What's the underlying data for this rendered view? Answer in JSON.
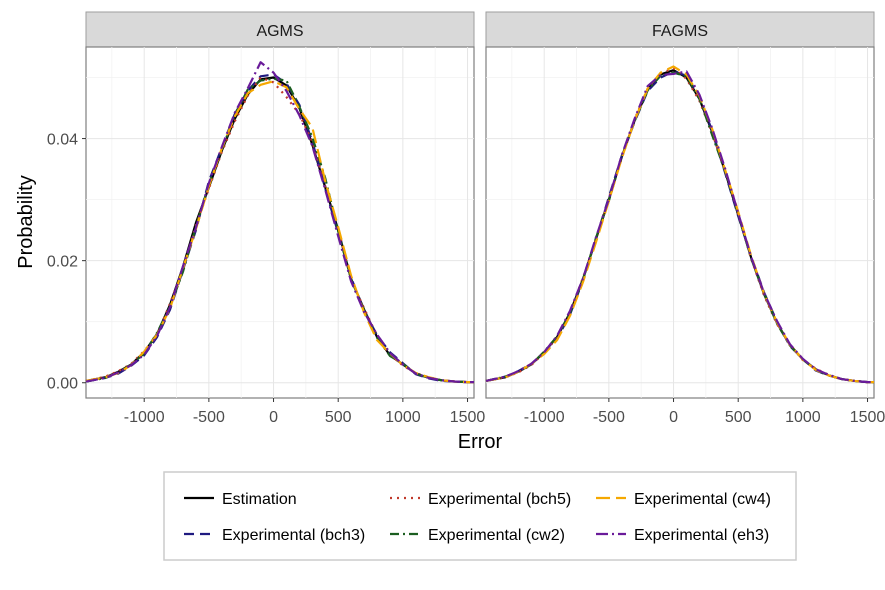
{
  "chart_data": {
    "type": "line",
    "facet_labels": [
      "AGMS",
      "FAGMS"
    ],
    "xlabel": "Error",
    "ylabel": "Probability",
    "xlim": [
      -1450,
      1550
    ],
    "ylim": [
      -0.0025,
      0.055
    ],
    "x_ticks": [
      -1000,
      -500,
      0,
      500,
      1000,
      1500
    ],
    "x_tick_labels": [
      "-1000",
      "-500",
      "0",
      "500",
      "1000",
      "1500"
    ],
    "y_ticks": [
      0,
      0.02,
      0.04
    ],
    "y_tick_labels": [
      "0.00",
      "0.02",
      "0.04"
    ],
    "grid": true,
    "legend_position": "bottom",
    "x": [
      -1450,
      -1300,
      -1200,
      -1100,
      -1000,
      -900,
      -800,
      -700,
      -600,
      -500,
      -400,
      -300,
      -200,
      -100,
      0,
      100,
      200,
      300,
      400,
      500,
      600,
      700,
      800,
      900,
      1000,
      1100,
      1200,
      1300,
      1400,
      1500,
      1550
    ],
    "series": [
      {
        "name": "Estimation",
        "color": "#000000",
        "dash": "",
        "stroke": 2.2,
        "AGMS": [
          0.0003,
          0.0009,
          0.0018,
          0.003,
          0.005,
          0.008,
          0.0128,
          0.019,
          0.0262,
          0.032,
          0.038,
          0.0432,
          0.0472,
          0.0497,
          0.05,
          0.0487,
          0.045,
          0.039,
          0.032,
          0.025,
          0.017,
          0.012,
          0.0075,
          0.0045,
          0.003,
          0.0015,
          0.0008,
          0.0004,
          0.0002,
          0.0001,
          0.0001
        ],
        "FAGMS": [
          0.0003,
          0.0009,
          0.0018,
          0.003,
          0.005,
          0.0075,
          0.0115,
          0.017,
          0.0235,
          0.03,
          0.037,
          0.043,
          0.048,
          0.0505,
          0.0512,
          0.05,
          0.0465,
          0.041,
          0.0345,
          0.0275,
          0.0205,
          0.0145,
          0.0098,
          0.0062,
          0.0038,
          0.0022,
          0.0012,
          0.0006,
          0.0003,
          0.0001,
          0.0001
        ]
      },
      {
        "name": "Experimental (bch3)",
        "color": "#1f1a80",
        "dash": "10,6",
        "stroke": 2.2,
        "AGMS": [
          0.0002,
          0.0008,
          0.0015,
          0.0028,
          0.0045,
          0.0075,
          0.012,
          0.0185,
          0.025,
          0.033,
          0.0385,
          0.044,
          0.0478,
          0.0502,
          0.0505,
          0.049,
          0.0455,
          0.0395,
          0.0318,
          0.0245,
          0.0172,
          0.0118,
          0.0078,
          0.005,
          0.0032,
          0.0014,
          0.0007,
          0.0003,
          0.0002,
          0.0001,
          0.0001
        ],
        "FAGMS": [
          0.0003,
          0.001,
          0.0019,
          0.0031,
          0.0048,
          0.0072,
          0.0112,
          0.0168,
          0.0236,
          0.0304,
          0.0372,
          0.0428,
          0.0478,
          0.05,
          0.051,
          0.0503,
          0.0468,
          0.0412,
          0.0343,
          0.0273,
          0.0207,
          0.0148,
          0.01,
          0.006,
          0.0039,
          0.002,
          0.0012,
          0.0006,
          0.0003,
          0.0001,
          0.0001
        ]
      },
      {
        "name": "Experimental (bch5)",
        "color": "#c0392b",
        "dash": "2,5",
        "stroke": 2.2,
        "AGMS": [
          0.0003,
          0.001,
          0.0019,
          0.0031,
          0.0052,
          0.0078,
          0.013,
          0.0186,
          0.0258,
          0.0318,
          0.0378,
          0.0428,
          0.047,
          0.05,
          0.0492,
          0.0468,
          0.044,
          0.0395,
          0.0322,
          0.0252,
          0.0168,
          0.0122,
          0.0077,
          0.0047,
          0.0028,
          0.0016,
          0.0009,
          0.0004,
          0.0002,
          0.0001,
          0.0001
        ],
        "FAGMS": [
          0.0003,
          0.0009,
          0.0017,
          0.0029,
          0.0049,
          0.0074,
          0.0116,
          0.0172,
          0.0234,
          0.0302,
          0.0368,
          0.0432,
          0.0482,
          0.0507,
          0.0515,
          0.0498,
          0.0462,
          0.0408,
          0.0347,
          0.0277,
          0.0203,
          0.0143,
          0.0096,
          0.0063,
          0.0037,
          0.0023,
          0.0013,
          0.0006,
          0.0003,
          0.0001,
          0.0001
        ]
      },
      {
        "name": "Experimental (cw2)",
        "color": "#1b5e20",
        "dash": "9,4,2,4",
        "stroke": 2.2,
        "AGMS": [
          0.0002,
          0.0008,
          0.0017,
          0.003,
          0.0048,
          0.0082,
          0.0125,
          0.0182,
          0.0255,
          0.0325,
          0.0382,
          0.0438,
          0.048,
          0.0495,
          0.0498,
          0.0495,
          0.0452,
          0.0402,
          0.0335,
          0.0248,
          0.017,
          0.0118,
          0.0074,
          0.0044,
          0.0031,
          0.0015,
          0.0008,
          0.0004,
          0.0002,
          0.0001,
          0.0001
        ],
        "FAGMS": [
          0.0003,
          0.001,
          0.0018,
          0.003,
          0.0051,
          0.0076,
          0.0114,
          0.0169,
          0.0237,
          0.0298,
          0.0371,
          0.0429,
          0.0479,
          0.0503,
          0.0508,
          0.0502,
          0.0466,
          0.0405,
          0.0346,
          0.0276,
          0.0204,
          0.0146,
          0.0097,
          0.0061,
          0.0038,
          0.0021,
          0.0012,
          0.0006,
          0.0003,
          0.0001,
          0.0001
        ]
      },
      {
        "name": "Experimental (cw4)",
        "color": "#f5a800",
        "dash": "14,6",
        "stroke": 2.2,
        "AGMS": [
          0.0003,
          0.0009,
          0.0016,
          0.0029,
          0.0051,
          0.0079,
          0.0122,
          0.0188,
          0.0252,
          0.0322,
          0.0384,
          0.0436,
          0.0474,
          0.0488,
          0.0494,
          0.0484,
          0.0448,
          0.0418,
          0.033,
          0.0255,
          0.0175,
          0.0115,
          0.007,
          0.0048,
          0.0029,
          0.0016,
          0.0009,
          0.0004,
          0.0002,
          0.0001,
          0.0001
        ],
        "FAGMS": [
          0.0003,
          0.0009,
          0.0018,
          0.0031,
          0.0047,
          0.007,
          0.011,
          0.0165,
          0.023,
          0.0298,
          0.0368,
          0.043,
          0.0482,
          0.0508,
          0.0518,
          0.0505,
          0.047,
          0.0415,
          0.0348,
          0.028,
          0.0208,
          0.0146,
          0.0099,
          0.0062,
          0.0038,
          0.0021,
          0.0012,
          0.0006,
          0.0003,
          0.0001,
          0.0001
        ]
      },
      {
        "name": "Experimental (eh3)",
        "color": "#6a1b9a",
        "dash": "12,4,2,4",
        "stroke": 2.2,
        "AGMS": [
          0.0002,
          0.0008,
          0.0017,
          0.0029,
          0.0046,
          0.0077,
          0.0124,
          0.0191,
          0.0254,
          0.0327,
          0.0386,
          0.0442,
          0.0482,
          0.0525,
          0.0508,
          0.0478,
          0.0438,
          0.0388,
          0.0316,
          0.024,
          0.0166,
          0.0116,
          0.0079,
          0.0049,
          0.003,
          0.0015,
          0.0008,
          0.0004,
          0.0002,
          0.0001,
          0.0001
        ],
        "FAGMS": [
          0.0003,
          0.001,
          0.0019,
          0.0031,
          0.005,
          0.0077,
          0.0118,
          0.0171,
          0.0238,
          0.0301,
          0.0373,
          0.0433,
          0.0486,
          0.0504,
          0.0506,
          0.051,
          0.0472,
          0.0416,
          0.035,
          0.0278,
          0.0206,
          0.0147,
          0.0101,
          0.0063,
          0.0039,
          0.0022,
          0.0013,
          0.0006,
          0.0003,
          0.0001,
          0.0001
        ]
      }
    ]
  }
}
